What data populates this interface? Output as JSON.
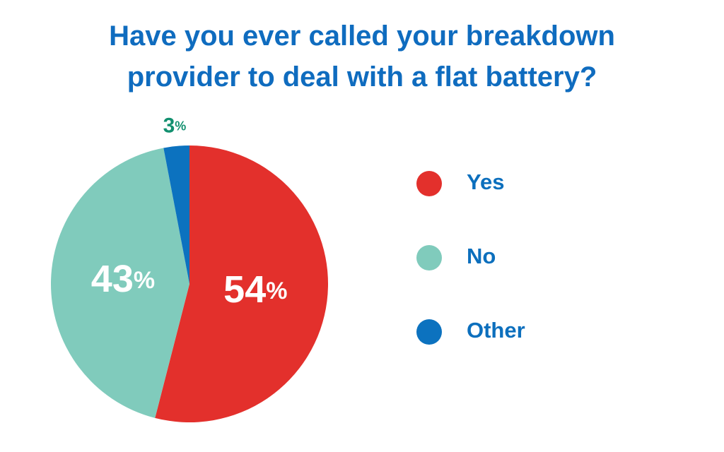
{
  "chart_data": {
    "type": "pie",
    "title": "Have you ever called your breakdown provider to deal with a flat battery?",
    "categories": [
      "Yes",
      "No",
      "Other"
    ],
    "values": [
      54,
      43,
      3
    ],
    "value_labels": [
      "54%",
      "43%",
      "3%"
    ],
    "colors": [
      "#e3302c",
      "#80cbbc",
      "#0c72bf"
    ],
    "label_colors": [
      "#ffffff",
      "#ffffff",
      "#12906f"
    ],
    "legend": "right"
  }
}
